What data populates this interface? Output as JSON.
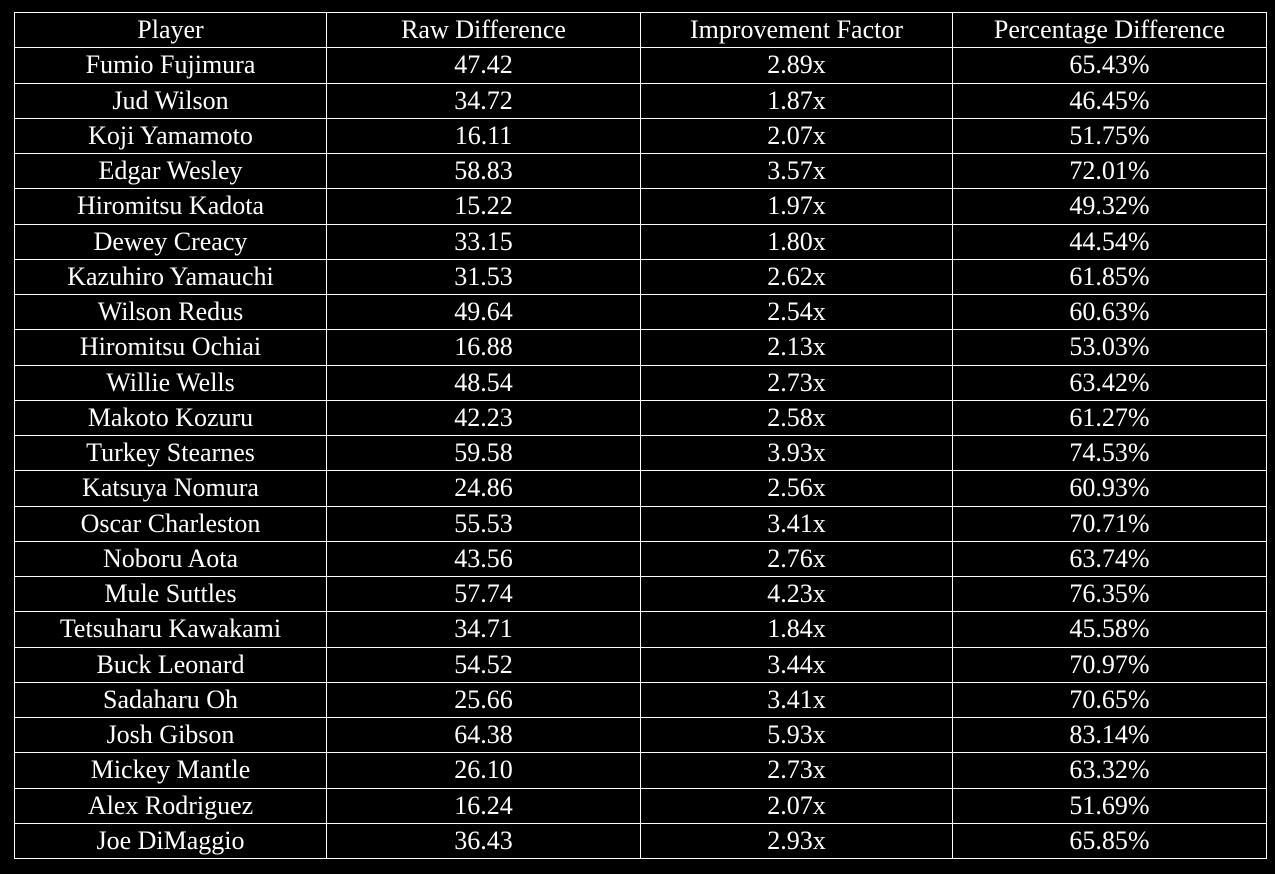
{
  "colors": {
    "background": "#000000",
    "text": "#ffffff",
    "border": "#ffffff"
  },
  "chart_data": {
    "type": "table",
    "columns": [
      "Player",
      "Raw Difference",
      "Improvement Factor",
      "Percentage Difference"
    ],
    "rows": [
      [
        "Fumio Fujimura",
        "47.42",
        "2.89x",
        "65.43%"
      ],
      [
        "Jud Wilson",
        "34.72",
        "1.87x",
        "46.45%"
      ],
      [
        "Koji Yamamoto",
        "16.11",
        "2.07x",
        "51.75%"
      ],
      [
        "Edgar Wesley",
        "58.83",
        "3.57x",
        "72.01%"
      ],
      [
        "Hiromitsu Kadota",
        "15.22",
        "1.97x",
        "49.32%"
      ],
      [
        "Dewey Creacy",
        "33.15",
        "1.80x",
        "44.54%"
      ],
      [
        "Kazuhiro Yamauchi",
        "31.53",
        "2.62x",
        "61.85%"
      ],
      [
        "Wilson Redus",
        "49.64",
        "2.54x",
        "60.63%"
      ],
      [
        "Hiromitsu Ochiai",
        "16.88",
        "2.13x",
        "53.03%"
      ],
      [
        "Willie Wells",
        "48.54",
        "2.73x",
        "63.42%"
      ],
      [
        "Makoto Kozuru",
        "42.23",
        "2.58x",
        "61.27%"
      ],
      [
        "Turkey Stearnes",
        "59.58",
        "3.93x",
        "74.53%"
      ],
      [
        "Katsuya Nomura",
        "24.86",
        "2.56x",
        "60.93%"
      ],
      [
        "Oscar Charleston",
        "55.53",
        "3.41x",
        "70.71%"
      ],
      [
        "Noboru Aota",
        "43.56",
        "2.76x",
        "63.74%"
      ],
      [
        "Mule Suttles",
        "57.74",
        "4.23x",
        "76.35%"
      ],
      [
        "Tetsuharu Kawakami",
        "34.71",
        "1.84x",
        "45.58%"
      ],
      [
        "Buck Leonard",
        "54.52",
        "3.44x",
        "70.97%"
      ],
      [
        "Sadaharu Oh",
        "25.66",
        "3.41x",
        "70.65%"
      ],
      [
        "Josh Gibson",
        "64.38",
        "5.93x",
        "83.14%"
      ],
      [
        "Mickey Mantle",
        "26.10",
        "2.73x",
        "63.32%"
      ],
      [
        "Alex Rodriguez",
        "16.24",
        "2.07x",
        "51.69%"
      ],
      [
        "Joe DiMaggio",
        "36.43",
        "2.93x",
        "65.85%"
      ]
    ]
  }
}
